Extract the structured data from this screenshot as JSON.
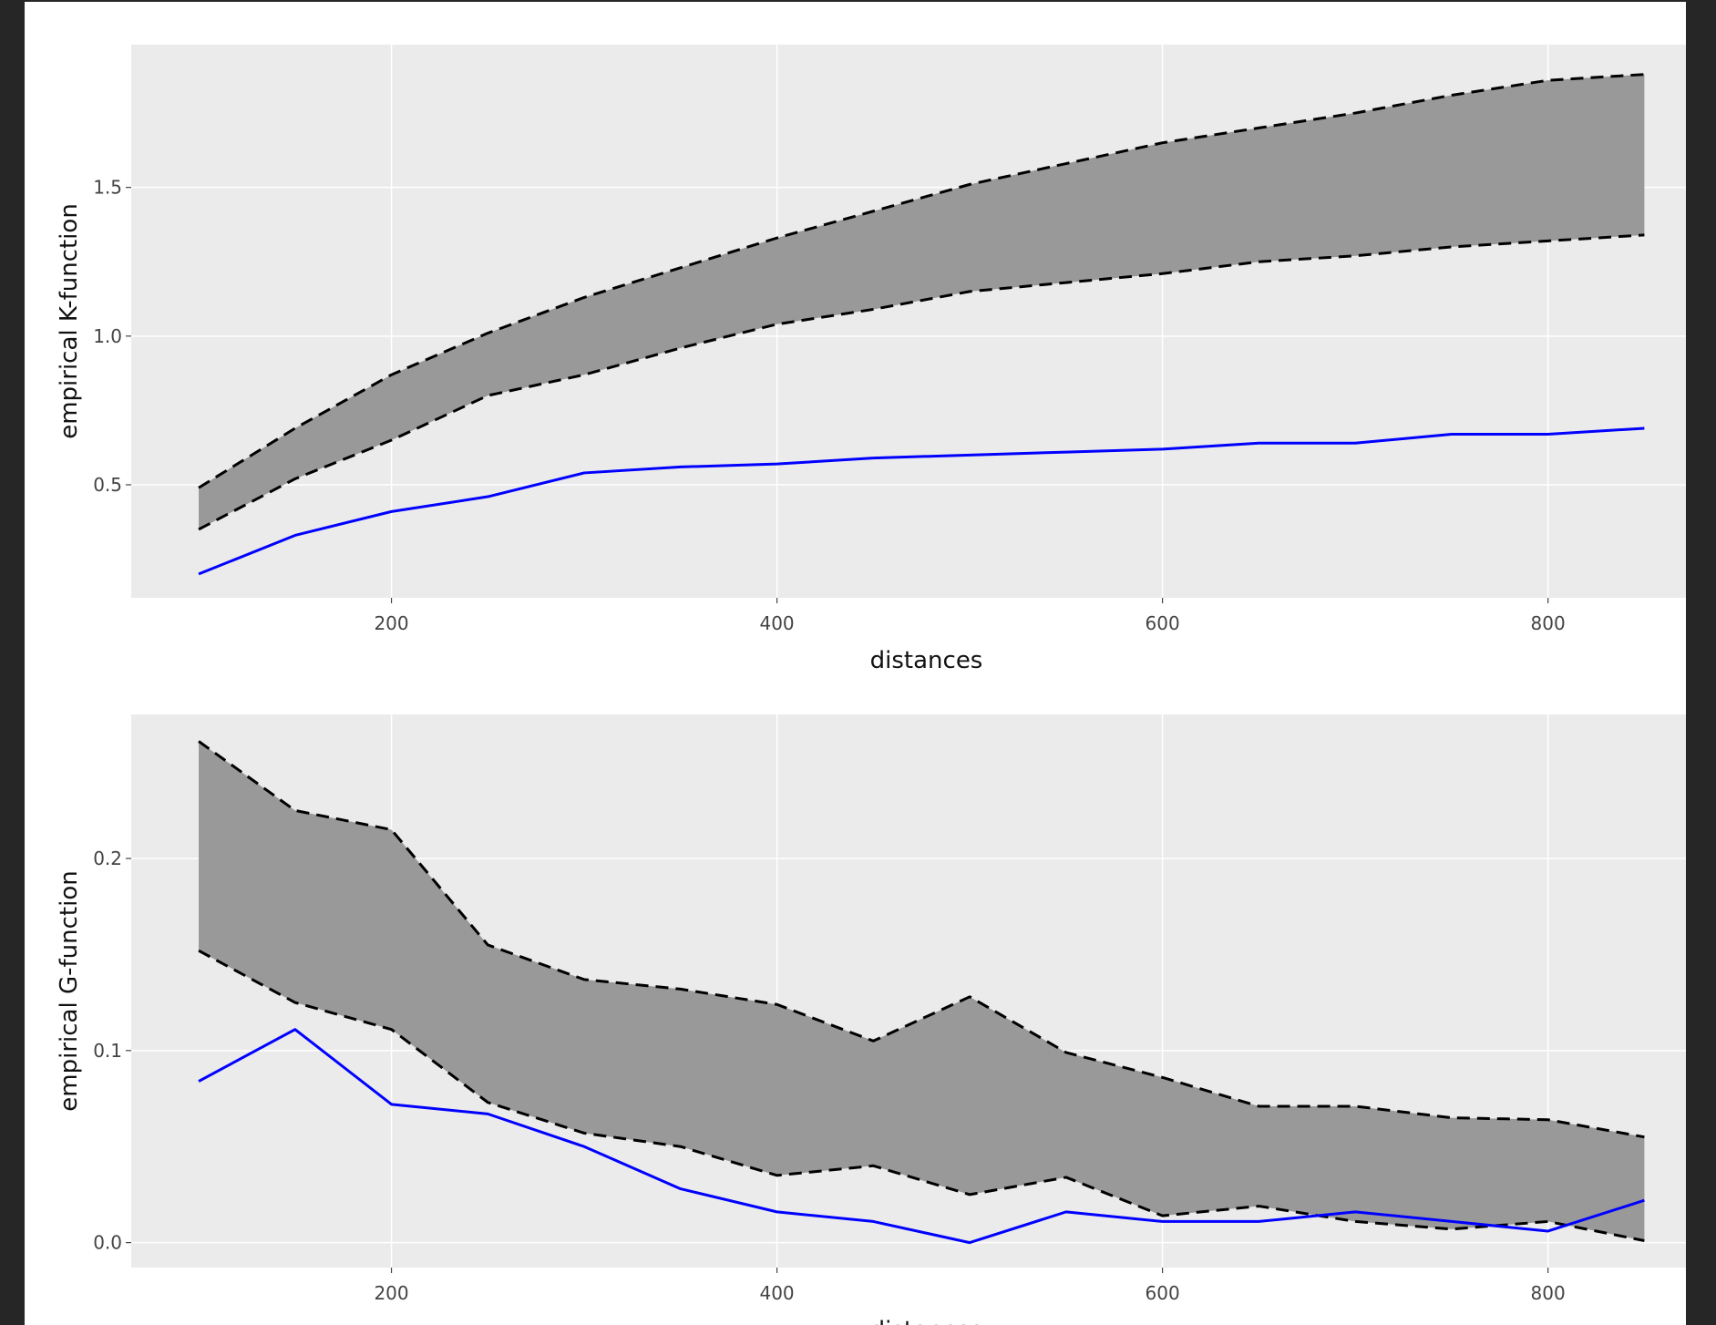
{
  "chart_data": [
    {
      "type": "line",
      "xlabel": "distances",
      "ylabel": "empirical K-function",
      "xlim": [
        65,
        890
      ],
      "ylim": [
        0.12,
        1.98
      ],
      "xticks": [
        200,
        400,
        600,
        800
      ],
      "yticks": [
        0.5,
        1.0,
        1.5
      ],
      "xtick_labels": [
        "200",
        "400",
        "600",
        "800"
      ],
      "ytick_labels": [
        "0.5",
        "1.0",
        "1.5"
      ],
      "grid": true,
      "x": [
        100,
        150,
        200,
        250,
        300,
        350,
        400,
        450,
        500,
        550,
        600,
        650,
        700,
        750,
        800,
        850
      ],
      "envelope": {
        "upper": [
          0.49,
          0.69,
          0.87,
          1.01,
          1.13,
          1.23,
          1.33,
          1.42,
          1.51,
          1.58,
          1.65,
          1.7,
          1.75,
          1.81,
          1.86,
          1.88
        ],
        "lower": [
          0.35,
          0.52,
          0.65,
          0.8,
          0.87,
          0.96,
          1.04,
          1.09,
          1.15,
          1.18,
          1.21,
          1.25,
          1.27,
          1.3,
          1.32,
          1.34
        ],
        "fill_color": "#999999",
        "line_color": "#000000"
      },
      "series": [
        {
          "values": [
            0.2,
            0.33,
            0.41,
            0.46,
            0.54,
            0.56,
            0.57,
            0.59,
            0.6,
            0.61,
            0.62,
            0.64,
            0.64,
            0.67,
            0.67,
            0.69
          ],
          "color": "#0000ff"
        }
      ]
    },
    {
      "type": "line",
      "xlabel": "distances",
      "ylabel": "empirical G-function",
      "xlim": [
        65,
        890
      ],
      "ylim": [
        -0.013,
        0.275
      ],
      "xticks": [
        200,
        400,
        600,
        800
      ],
      "yticks": [
        0.0,
        0.1,
        0.2
      ],
      "xtick_labels": [
        "200",
        "400",
        "600",
        "800"
      ],
      "ytick_labels": [
        "0.0",
        "0.1",
        "0.2"
      ],
      "grid": true,
      "x": [
        100,
        150,
        200,
        250,
        300,
        350,
        400,
        450,
        500,
        550,
        600,
        650,
        700,
        750,
        800,
        850
      ],
      "envelope": {
        "upper": [
          0.261,
          0.225,
          0.215,
          0.155,
          0.137,
          0.132,
          0.124,
          0.105,
          0.128,
          0.099,
          0.086,
          0.071,
          0.071,
          0.065,
          0.064,
          0.055
        ],
        "lower": [
          0.152,
          0.125,
          0.111,
          0.073,
          0.057,
          0.05,
          0.035,
          0.04,
          0.025,
          0.034,
          0.014,
          0.019,
          0.011,
          0.007,
          0.011,
          0.001
        ],
        "fill_color": "#999999",
        "line_color": "#000000"
      },
      "series": [
        {
          "values": [
            0.084,
            0.111,
            0.072,
            0.067,
            0.05,
            0.028,
            0.016,
            0.011,
            0.0,
            0.016,
            0.011,
            0.011,
            0.016,
            0.011,
            0.006,
            0.022
          ],
          "color": "#0000ff"
        }
      ]
    }
  ]
}
